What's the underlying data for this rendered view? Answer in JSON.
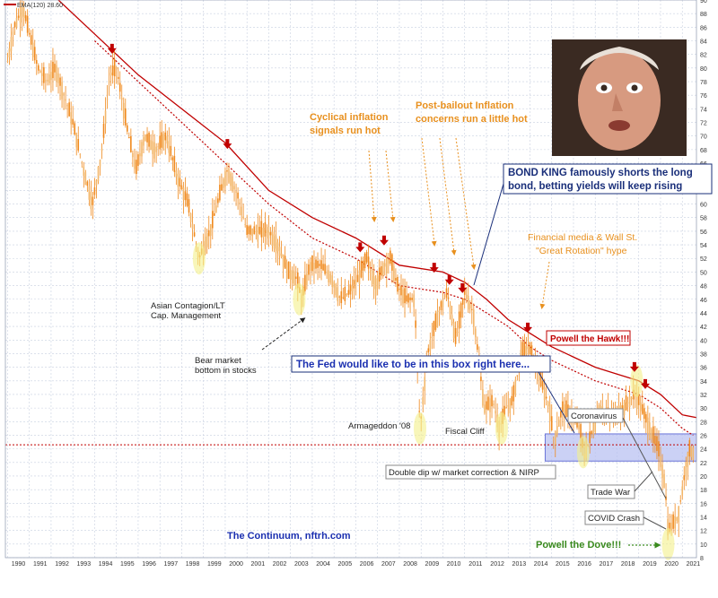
{
  "legend": {
    "ema_label": "EMA(120) 28.60"
  },
  "colors": {
    "price": "#f08a1e",
    "price_light": "#f3b76a",
    "ema": "#c00000",
    "ema_dotted": "#c00000",
    "grid": "#c8d0e0",
    "box_fill": "#b9c2f2",
    "box_stroke": "#6a74d8",
    "orange_text": "#e8901e",
    "navy_text": "#1a2f7a",
    "green_text": "#3a8a1e",
    "red_text": "#c00000",
    "highlight": "#f4f08a"
  },
  "annotations": {
    "asian": [
      "Asian Contagion/LT",
      "Cap. Management"
    ],
    "bear": [
      "Bear market",
      "bottom in stocks"
    ],
    "armageddon": "Armageddon '08",
    "fiscal": "Fiscal Cliff",
    "cyclical": [
      "Cyclical inflation",
      "signals run hot"
    ],
    "postbailout": [
      "Post-bailout Inflation",
      "concerns run a little hot"
    ],
    "bondking": [
      "BOND KING famously shorts the long",
      "bond, betting yields will keep rising"
    ],
    "financial": [
      "Financial media & Wall St.",
      "\"Great Rotation\" hype"
    ],
    "hawk": "Powell the Hawk!!!",
    "fedbox": "The Fed would like to be in this box right here...",
    "corona": "Coronavirus",
    "doubledip": "Double dip w/ market correction & NIRP",
    "tradewar": "Trade War",
    "covid": "COVID Crash",
    "dove": "Powell the Dove!!!",
    "continuum": "The Continuum, nftrh.com"
  },
  "chart_data": {
    "type": "candlestick",
    "title": "",
    "xlabel": "",
    "ylabel": "",
    "xlim": [
      1989.9,
      2021.65
    ],
    "ylim": [
      8,
      90
    ],
    "y_ticks": [
      8,
      10,
      12,
      14,
      16,
      18,
      20,
      22,
      24,
      26,
      28,
      30,
      32,
      34,
      36,
      38,
      40,
      42,
      44,
      46,
      48,
      50,
      52,
      54,
      56,
      58,
      60,
      62,
      64,
      66,
      68,
      70,
      72,
      74,
      76,
      78,
      80,
      82,
      84,
      86,
      88,
      90
    ],
    "x_ticks": [
      "1990",
      "1991",
      "1992",
      "1993",
      "1994",
      "1995",
      "1996",
      "1997",
      "1998",
      "1999",
      "2000",
      "2001",
      "2002",
      "2003",
      "2004",
      "2005",
      "2006",
      "2007",
      "2008",
      "2009",
      "2010",
      "2011",
      "2012",
      "2013",
      "2014",
      "2015",
      "2016",
      "2017",
      "2018",
      "2019",
      "2020",
      "2021"
    ],
    "grid": true,
    "horizontal_reference": 24.6,
    "fed_box": {
      "x0": 2014.7,
      "x1": 2021.65,
      "y0": 22.2,
      "y1": 26.2
    },
    "price_path": [
      [
        1990.0,
        81
      ],
      [
        1990.3,
        86
      ],
      [
        1990.7,
        89
      ],
      [
        1991.0,
        85
      ],
      [
        1991.4,
        80
      ],
      [
        1991.8,
        78
      ],
      [
        1992.2,
        80
      ],
      [
        1992.6,
        76
      ],
      [
        1993.0,
        72
      ],
      [
        1993.5,
        65
      ],
      [
        1993.9,
        60
      ],
      [
        1994.3,
        67
      ],
      [
        1994.7,
        79
      ],
      [
        1995.0,
        80
      ],
      [
        1995.5,
        71
      ],
      [
        1995.9,
        65
      ],
      [
        1996.3,
        70
      ],
      [
        1996.8,
        68
      ],
      [
        1997.3,
        70
      ],
      [
        1997.8,
        64
      ],
      [
        1998.3,
        60
      ],
      [
        1998.8,
        52
      ],
      [
        1999.3,
        56
      ],
      [
        1999.8,
        62
      ],
      [
        2000.1,
        65
      ],
      [
        2000.6,
        61
      ],
      [
        2001.0,
        56
      ],
      [
        2001.5,
        56
      ],
      [
        2002.0,
        56
      ],
      [
        2002.4,
        54
      ],
      [
        2002.9,
        50
      ],
      [
        2003.3,
        49
      ],
      [
        2003.5,
        46
      ],
      [
        2003.9,
        51
      ],
      [
        2004.4,
        51
      ],
      [
        2004.9,
        49
      ],
      [
        2005.3,
        46
      ],
      [
        2005.7,
        47
      ],
      [
        2006.1,
        49
      ],
      [
        2006.5,
        52
      ],
      [
        2006.9,
        48
      ],
      [
        2007.3,
        51
      ],
      [
        2007.6,
        52
      ],
      [
        2007.9,
        48
      ],
      [
        2008.3,
        46
      ],
      [
        2008.7,
        46
      ],
      [
        2008.95,
        27
      ],
      [
        2009.3,
        38
      ],
      [
        2009.8,
        44
      ],
      [
        2010.2,
        47
      ],
      [
        2010.6,
        40
      ],
      [
        2011.0,
        47
      ],
      [
        2011.4,
        44
      ],
      [
        2011.9,
        30
      ],
      [
        2012.3,
        31
      ],
      [
        2012.6,
        27
      ],
      [
        2012.9,
        30
      ],
      [
        2013.2,
        31
      ],
      [
        2013.6,
        38
      ],
      [
        2013.95,
        39
      ],
      [
        2014.4,
        35
      ],
      [
        2014.9,
        30
      ],
      [
        2015.1,
        25
      ],
      [
        2015.5,
        30
      ],
      [
        2015.9,
        29
      ],
      [
        2016.3,
        27
      ],
      [
        2016.5,
        23
      ],
      [
        2016.8,
        26
      ],
      [
        2017.2,
        30
      ],
      [
        2017.6,
        29
      ],
      [
        2017.9,
        29
      ],
      [
        2018.3,
        30
      ],
      [
        2018.8,
        32
      ],
      [
        2019.0,
        31
      ],
      [
        2019.5,
        27
      ],
      [
        2019.9,
        24
      ],
      [
        2020.2,
        19
      ],
      [
        2020.35,
        12
      ],
      [
        2020.8,
        14
      ],
      [
        2021.0,
        18
      ],
      [
        2021.2,
        22
      ],
      [
        2021.35,
        24
      ],
      [
        2021.5,
        23.5
      ]
    ],
    "ema_path": [
      [
        1990.0,
        97
      ],
      [
        1992.0,
        91
      ],
      [
        1994.0,
        85
      ],
      [
        1996.0,
        79
      ],
      [
        1998.0,
        74
      ],
      [
        2000.0,
        69
      ],
      [
        2002.0,
        62
      ],
      [
        2004.0,
        58
      ],
      [
        2006.0,
        55
      ],
      [
        2008.0,
        51
      ],
      [
        2010.0,
        50
      ],
      [
        2011.0,
        48.5
      ],
      [
        2012.0,
        46
      ],
      [
        2013.0,
        43
      ],
      [
        2014.0,
        41
      ],
      [
        2015.0,
        39
      ],
      [
        2016.0,
        37.5
      ],
      [
        2017.0,
        36
      ],
      [
        2018.0,
        35
      ],
      [
        2019.0,
        34
      ],
      [
        2020.0,
        32
      ],
      [
        2021.0,
        29
      ],
      [
        2021.65,
        28.6
      ]
    ],
    "ema_dotted_path": [
      [
        1994.0,
        84
      ],
      [
        1996.0,
        78
      ],
      [
        1998.0,
        72
      ],
      [
        2000.0,
        66
      ],
      [
        2002.0,
        60
      ],
      [
        2004.0,
        55
      ],
      [
        2006.0,
        52
      ],
      [
        2008.0,
        48
      ],
      [
        2010.0,
        47
      ],
      [
        2011.0,
        46
      ],
      [
        2012.0,
        44
      ],
      [
        2013.0,
        42
      ],
      [
        2014.0,
        39
      ],
      [
        2015.0,
        37
      ],
      [
        2016.0,
        35.5
      ],
      [
        2017.0,
        34
      ],
      [
        2018.0,
        33
      ],
      [
        2019.0,
        32
      ],
      [
        2020.0,
        30
      ],
      [
        2021.0,
        27
      ],
      [
        2021.5,
        26
      ]
    ],
    "sell_signal_arrows": [
      [
        1994.8,
        82.5
      ],
      [
        2000.1,
        68.5
      ],
      [
        2006.2,
        53.3
      ],
      [
        2007.3,
        54.3
      ],
      [
        2009.6,
        50.3
      ],
      [
        2010.3,
        48.5
      ],
      [
        2010.9,
        47.3
      ],
      [
        2013.9,
        41.5
      ],
      [
        2018.8,
        35.7
      ],
      [
        2019.3,
        33.2
      ]
    ],
    "highlighted_lows": [
      [
        1998.8,
        52
      ],
      [
        2003.4,
        46
      ],
      [
        2008.95,
        27
      ],
      [
        2012.7,
        27
      ],
      [
        2016.45,
        23.5
      ],
      [
        2018.9,
        34
      ],
      [
        2020.35,
        10
      ]
    ]
  }
}
